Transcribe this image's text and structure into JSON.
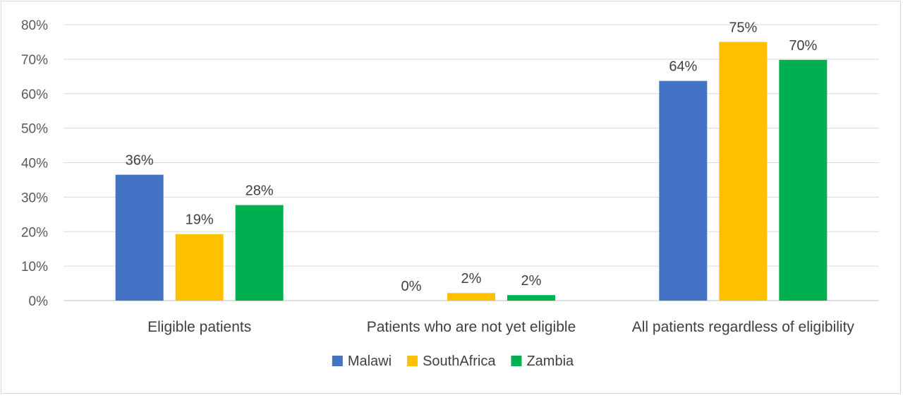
{
  "chart_data": {
    "type": "bar",
    "categories": [
      "Eligible patients",
      "Patients who are not yet eligible",
      "All patients regardless of eligibility"
    ],
    "series": [
      {
        "name": "Malawi",
        "values": [
          36.5,
          0,
          63.7
        ],
        "labels": [
          "36%",
          "0%",
          "64%"
        ],
        "color": "#4472C4"
      },
      {
        "name": "SouthAfrica",
        "values": [
          19.3,
          2.2,
          75.0
        ],
        "labels": [
          "19%",
          "2%",
          "75%"
        ],
        "color": "#FFC000"
      },
      {
        "name": "Zambia",
        "values": [
          27.7,
          1.6,
          69.8
        ],
        "labels": [
          "28%",
          "2%",
          "70%"
        ],
        "color": "#00B050"
      }
    ],
    "yticks": [
      "0%",
      "10%",
      "20%",
      "30%",
      "40%",
      "50%",
      "60%",
      "70%",
      "80%"
    ],
    "ylim": [
      0,
      80
    ],
    "title": "",
    "xlabel": "",
    "ylabel": "",
    "grid": true,
    "legend_position": "bottom"
  }
}
